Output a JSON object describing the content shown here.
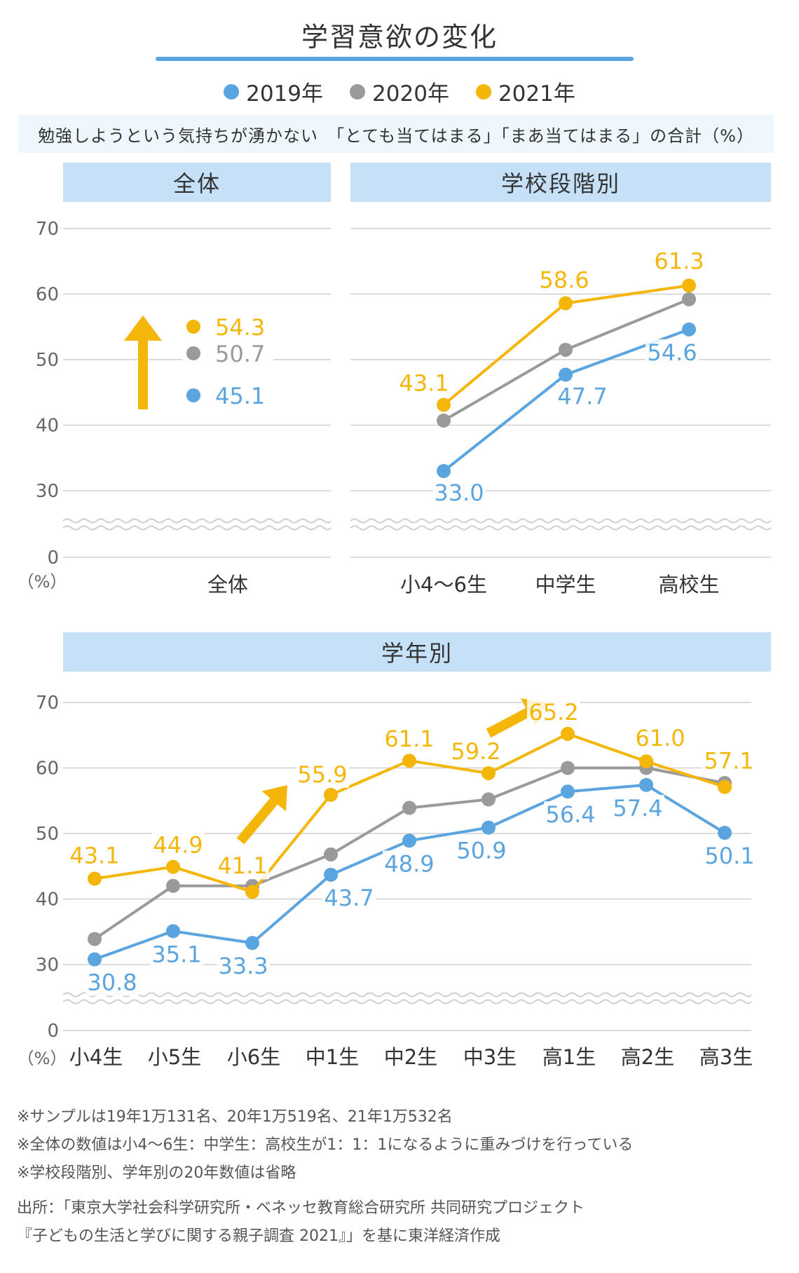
{
  "title": "学習意欲の変化",
  "legend": [
    {
      "label": "2019年",
      "color": "#5aa4e0"
    },
    {
      "label": "2020年",
      "color": "#9a9a9a"
    },
    {
      "label": "2021年",
      "color": "#f5b60a"
    }
  ],
  "subtitle": "勉強しようという気持ちが湧かない　「とても当てはまる」「まあ当てはまる」の合計（%）",
  "unit_label": "（%）",
  "panels": {
    "overall": {
      "header": "全体"
    },
    "school": {
      "header": "学校段階別"
    },
    "grade": {
      "header": "学年別"
    }
  },
  "colors": {
    "y2019": "#5aa4e0",
    "y2020": "#9a9a9a",
    "y2021": "#f5b60a",
    "grid": "#cfcfcf",
    "header": "#c6e1f7"
  },
  "chart_data": [
    {
      "type": "scatter",
      "id": "overall",
      "categories": [
        "全体"
      ],
      "y_ticks": [
        0,
        30,
        40,
        50,
        60,
        70
      ],
      "ylim": [
        30,
        70
      ],
      "axis_break": true,
      "series": [
        {
          "name": "2021年",
          "values": [
            54.3
          ],
          "labels": [
            "54.3"
          ]
        },
        {
          "name": "2020年",
          "values": [
            50.7
          ],
          "labels": [
            "50.7"
          ]
        },
        {
          "name": "2019年",
          "values": [
            45.1
          ],
          "labels": [
            "45.1"
          ]
        }
      ]
    },
    {
      "type": "line",
      "id": "school",
      "categories": [
        "小4〜6生",
        "中学生",
        "高校生"
      ],
      "y_ticks": [
        0,
        30,
        40,
        50,
        60,
        70
      ],
      "ylim": [
        30,
        70
      ],
      "axis_break": true,
      "series": [
        {
          "name": "2019年",
          "values": [
            33.0,
            47.7,
            54.6
          ],
          "labels": [
            "33.0",
            "47.7",
            "54.6"
          ]
        },
        {
          "name": "2020年",
          "values": [
            40.7,
            51.5,
            59.2
          ],
          "labels": [
            null,
            null,
            null
          ]
        },
        {
          "name": "2021年",
          "values": [
            43.1,
            58.6,
            61.3
          ],
          "labels": [
            "43.1",
            "58.6",
            "61.3"
          ]
        }
      ]
    },
    {
      "type": "line",
      "id": "grade",
      "categories": [
        "小4生",
        "小5生",
        "小6生",
        "中1生",
        "中2生",
        "中3生",
        "高1生",
        "高2生",
        "高3生"
      ],
      "y_ticks": [
        0,
        30,
        40,
        50,
        60,
        70
      ],
      "ylim": [
        30,
        70
      ],
      "axis_break": true,
      "series": [
        {
          "name": "2019年",
          "values": [
            30.8,
            35.1,
            33.3,
            43.7,
            48.9,
            50.9,
            56.4,
            57.4,
            50.1
          ],
          "labels": [
            "30.8",
            "35.1",
            "33.3",
            "43.7",
            "48.9",
            "50.9",
            "56.4",
            "57.4",
            "50.1"
          ]
        },
        {
          "name": "2020年",
          "values": [
            33.9,
            42.0,
            42.0,
            46.8,
            53.9,
            55.2,
            60.0,
            60.0,
            57.7
          ],
          "labels": [
            null,
            null,
            null,
            null,
            null,
            null,
            null,
            null,
            null
          ]
        },
        {
          "name": "2021年",
          "values": [
            43.1,
            44.9,
            41.1,
            55.9,
            61.1,
            59.2,
            65.2,
            61.0,
            57.1
          ],
          "labels": [
            "43.1",
            "44.9",
            "41.1",
            "55.9",
            "61.1",
            "59.2",
            "65.2",
            "61.0",
            "57.1"
          ]
        }
      ]
    }
  ],
  "notes": [
    "※サンプルは19年1万131名、20年1万519名、21年1万532名",
    "※全体の数値は小4〜6生：中学生：高校生が1：1：1になるように重みづけを行っている",
    "※学校段階別、学年別の20年数値は省略"
  ],
  "source": [
    "出所：「東京大学社会科学研究所・ベネッセ教育総合研究所 共同研究プロジェクト",
    "『子どもの生活と学びに関する親子調査 2021』」を基に東洋経済作成"
  ]
}
